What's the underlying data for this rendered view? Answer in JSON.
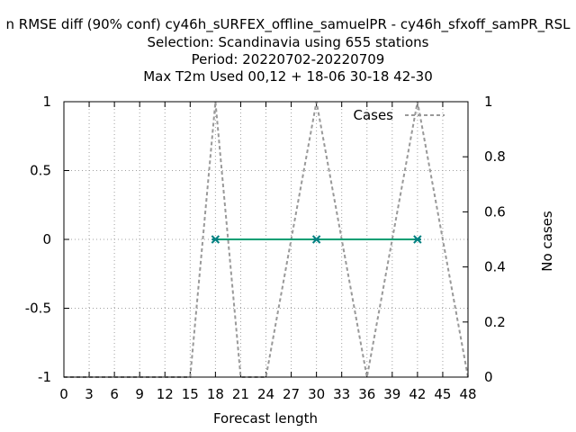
{
  "chart_data": {
    "type": "line",
    "title_lines": [
      "n RMSE diff (90% conf) cy46h_sURFEX_offline_samuelPR - cy46h_sfxoff_samPR_RSL",
      "Selection: Scandinavia using   655 stations",
      "Period: 20220702-20220709",
      "Max T2m   Used  00,12  + 18-06 30-18 42-30"
    ],
    "xlabel": "Forecast length",
    "ylabel": "",
    "y2label": "No cases",
    "x_ticks": [
      "0",
      "3",
      "6",
      "9",
      "12",
      "15",
      "18",
      "21",
      "24",
      "27",
      "30",
      "33",
      "36",
      "39",
      "42",
      "45",
      "48"
    ],
    "y_ticks": [
      "1",
      "0.5",
      "0",
      "-0.5",
      "-1"
    ],
    "y2_ticks": [
      "1",
      "0.8",
      "0.6",
      "0.4",
      "0.2",
      "0"
    ],
    "xlim": [
      0,
      48
    ],
    "ylim": [
      -1,
      1
    ],
    "y2lim": [
      0,
      1
    ],
    "grid": true,
    "legend_position": "top-right",
    "series": [
      {
        "name": "",
        "axis": "left",
        "color": "#009e73",
        "x": [
          18,
          30,
          42
        ],
        "y": [
          0,
          0,
          0
        ]
      },
      {
        "name": "Cases",
        "axis": "right",
        "color": "#999999",
        "dashed": true,
        "x": [
          0,
          15,
          18,
          21,
          24,
          30,
          36,
          42,
          48
        ],
        "y": [
          0,
          0,
          1,
          0,
          0,
          1,
          0,
          1,
          0
        ]
      }
    ],
    "markers": {
      "color": "#008080",
      "x": [
        18,
        30,
        42
      ],
      "y": [
        0,
        0,
        0
      ]
    }
  }
}
